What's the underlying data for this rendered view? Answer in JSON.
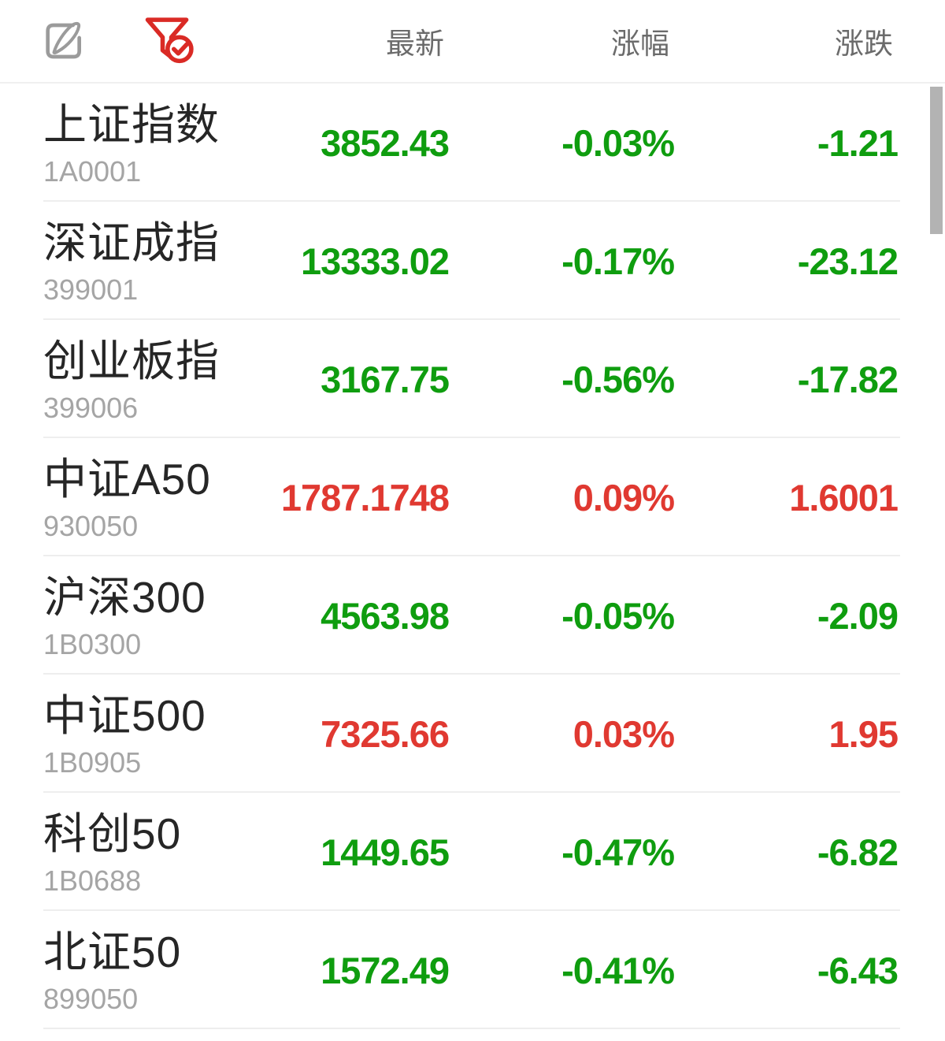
{
  "header": {
    "columns": [
      "最新",
      "涨幅",
      "涨跌"
    ],
    "icons": {
      "edit": "edit-icon",
      "filter": "filter-icon"
    }
  },
  "colors": {
    "up": "#e03931",
    "down": "#0f9d0f",
    "name_text": "#262626",
    "code_text": "#a5a5a5",
    "header_text": "#6b6b6b",
    "filter_icon": "#da2a25",
    "edit_icon": "#9b9b9b",
    "divider": "#eeeeee",
    "scrollbar": "#b3b3b3"
  },
  "indices": [
    {
      "name": "上证指数",
      "code": "1A0001",
      "last": "3852.43",
      "pct": "-0.03%",
      "chg": "-1.21",
      "trend": "down"
    },
    {
      "name": "深证成指",
      "code": "399001",
      "last": "13333.02",
      "pct": "-0.17%",
      "chg": "-23.12",
      "trend": "down"
    },
    {
      "name": "创业板指",
      "code": "399006",
      "last": "3167.75",
      "pct": "-0.56%",
      "chg": "-17.82",
      "trend": "down"
    },
    {
      "name": "中证A50",
      "code": "930050",
      "last": "1787.1748",
      "pct": "0.09%",
      "chg": "1.6001",
      "trend": "up"
    },
    {
      "name": "沪深300",
      "code": "1B0300",
      "last": "4563.98",
      "pct": "-0.05%",
      "chg": "-2.09",
      "trend": "down"
    },
    {
      "name": "中证500",
      "code": "1B0905",
      "last": "7325.66",
      "pct": "0.03%",
      "chg": "1.95",
      "trend": "up"
    },
    {
      "name": "科创50",
      "code": "1B0688",
      "last": "1449.65",
      "pct": "-0.47%",
      "chg": "-6.82",
      "trend": "down"
    },
    {
      "name": "北证50",
      "code": "899050",
      "last": "1572.49",
      "pct": "-0.41%",
      "chg": "-6.43",
      "trend": "down"
    }
  ]
}
